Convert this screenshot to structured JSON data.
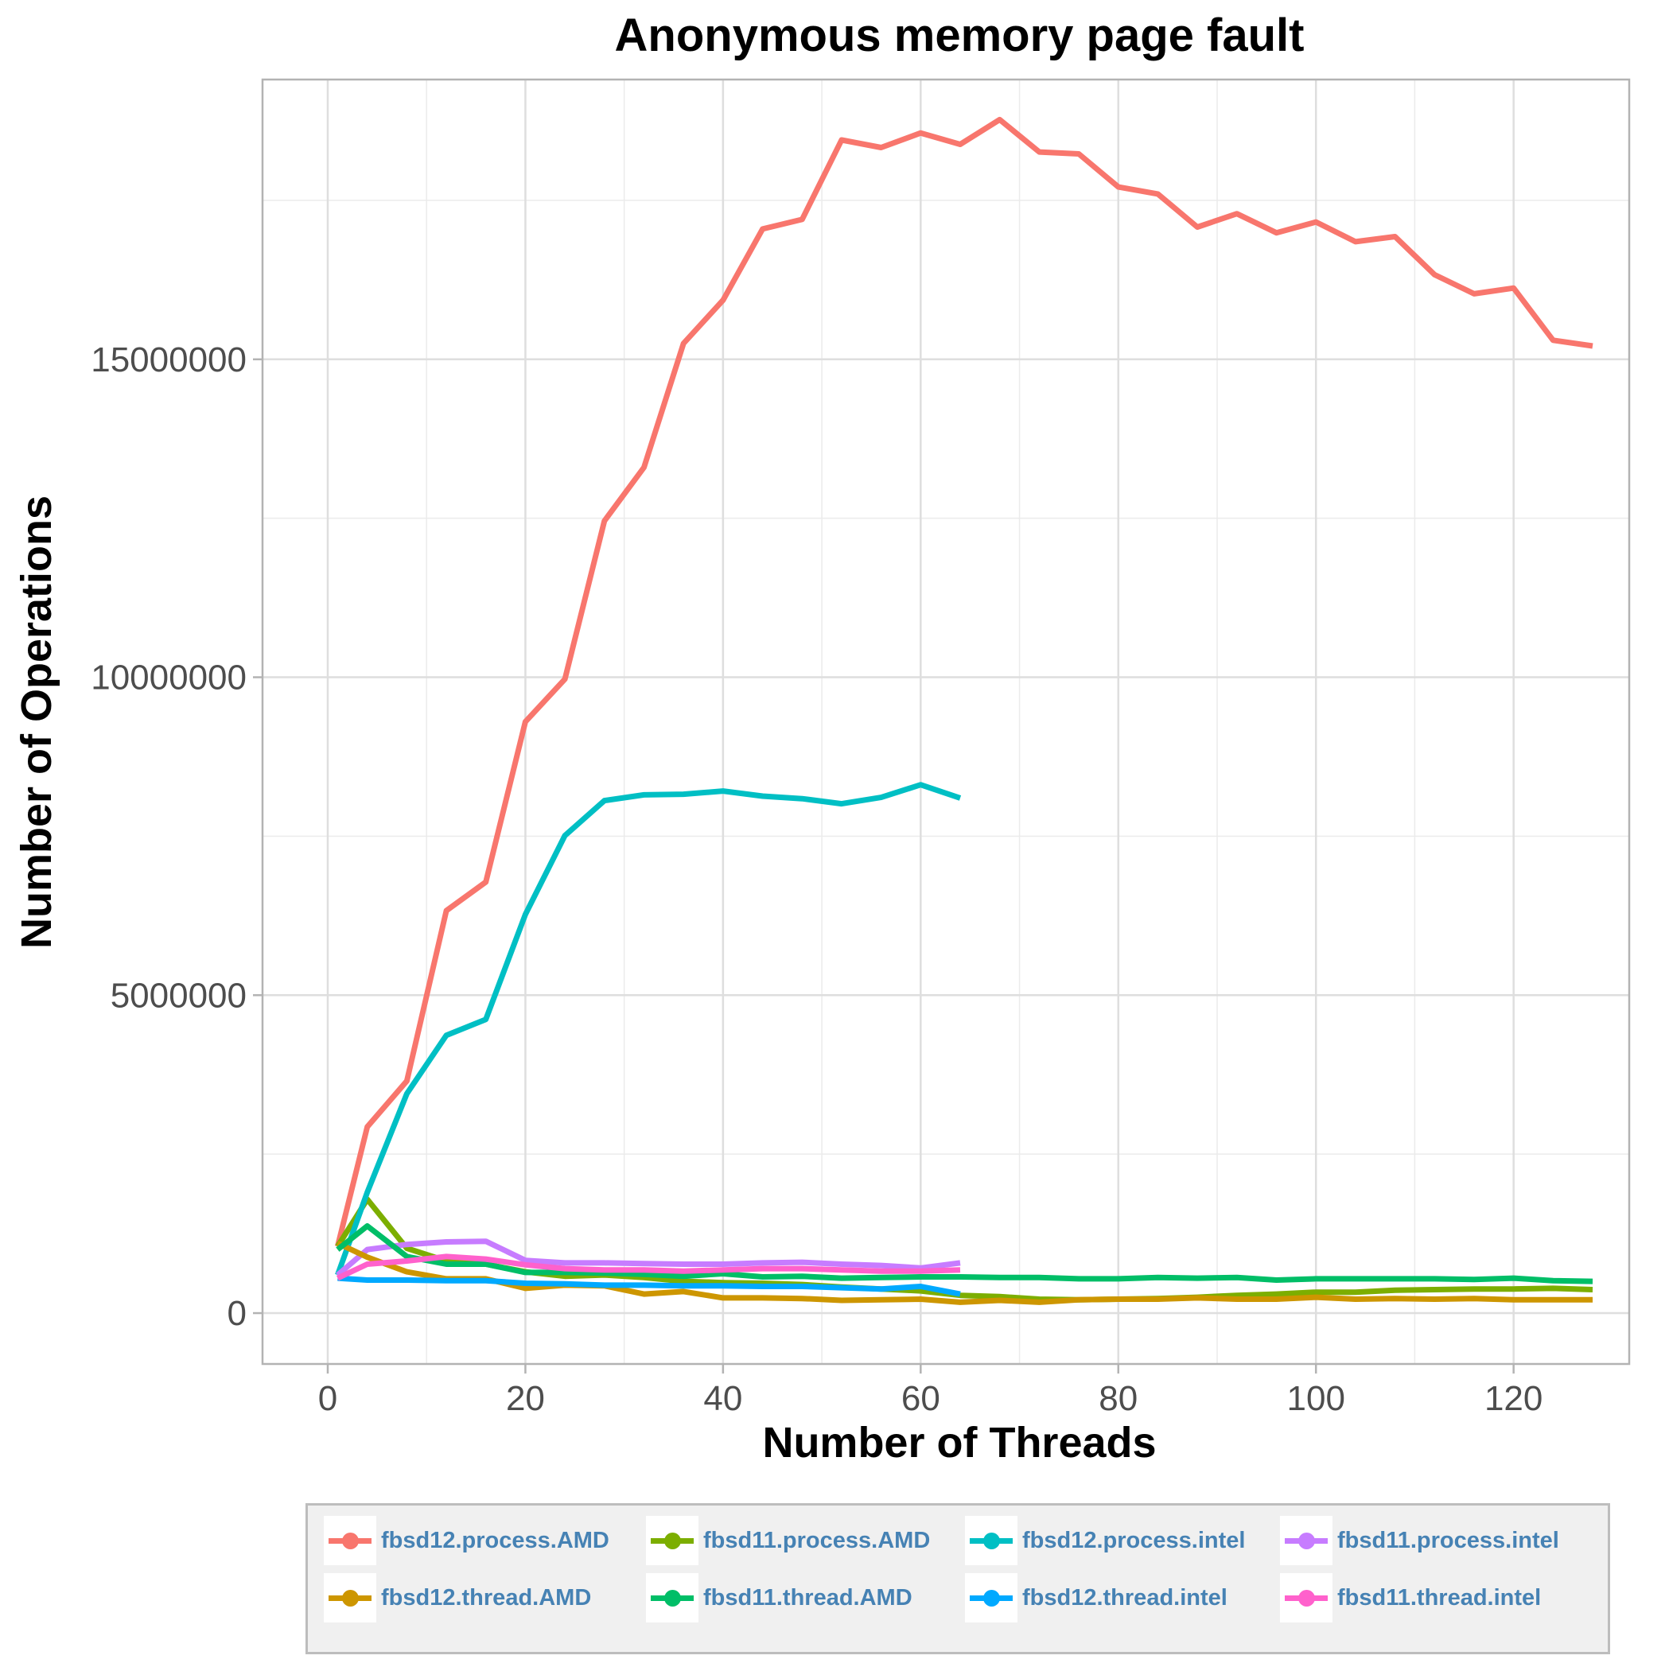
{
  "chart_data": {
    "type": "line",
    "title": "Anonymous memory page fault",
    "xlabel": "Number of Threads",
    "ylabel": "Number of Operations",
    "xlim": [
      -6.6,
      131.7
    ],
    "ylim": [
      -800000,
      19400000
    ],
    "xticks": [
      0,
      20,
      40,
      60,
      80,
      100,
      120
    ],
    "yticks": [
      0,
      5000000,
      10000000,
      15000000
    ],
    "ytick_labels": [
      "0",
      "5000000",
      "10000000",
      "15000000"
    ],
    "grid": true,
    "legend_position": "bottom",
    "series": [
      {
        "name": "fbsd12.process.AMD",
        "color": "#F8766D",
        "x": [
          1,
          4,
          8,
          12,
          16,
          20,
          24,
          28,
          32,
          36,
          40,
          44,
          48,
          52,
          56,
          60,
          64,
          68,
          72,
          76,
          80,
          84,
          88,
          92,
          96,
          100,
          104,
          108,
          112,
          116,
          120,
          124,
          128
        ],
        "y": [
          1050000,
          2930000,
          3650000,
          6330000,
          6780000,
          9300000,
          9970000,
          12460000,
          13300000,
          15250000,
          15930000,
          17050000,
          17200000,
          18450000,
          18330000,
          18560000,
          18380000,
          18770000,
          18260000,
          18230000,
          17710000,
          17600000,
          17080000,
          17290000,
          16990000,
          17160000,
          16850000,
          16930000,
          16330000,
          16030000,
          16120000,
          15300000,
          15210000
        ]
      },
      {
        "name": "fbsd11.process.AMD",
        "color": "#7CAE00",
        "x": [
          1,
          4,
          8,
          12,
          16,
          20,
          24,
          28,
          32,
          36,
          40,
          44,
          48,
          52,
          56,
          60,
          64,
          68,
          72,
          76,
          80,
          84,
          88,
          92,
          96,
          100,
          104,
          108,
          112,
          116,
          120,
          124,
          128
        ],
        "y": [
          1050000,
          1790000,
          1020000,
          820000,
          770000,
          650000,
          580000,
          600000,
          560000,
          500000,
          480000,
          470000,
          450000,
          410000,
          380000,
          350000,
          280000,
          260000,
          220000,
          210000,
          220000,
          230000,
          250000,
          280000,
          300000,
          330000,
          330000,
          360000,
          370000,
          380000,
          380000,
          390000,
          370000
        ]
      },
      {
        "name": "fbsd12.process.intel",
        "color": "#00BFC4",
        "x": [
          1,
          4,
          8,
          12,
          16,
          20,
          24,
          28,
          32,
          36,
          40,
          44,
          48,
          52,
          56,
          60,
          64
        ],
        "y": [
          600000,
          1900000,
          3450000,
          4370000,
          4620000,
          6270000,
          7510000,
          8060000,
          8150000,
          8160000,
          8210000,
          8130000,
          8090000,
          8010000,
          8110000,
          8310000,
          8100000
        ]
      },
      {
        "name": "fbsd11.process.intel",
        "color": "#C77CFF",
        "x": [
          1,
          4,
          8,
          12,
          16,
          20,
          24,
          28,
          32,
          36,
          40,
          44,
          48,
          52,
          56,
          60,
          64
        ],
        "y": [
          600000,
          1000000,
          1080000,
          1120000,
          1130000,
          830000,
          790000,
          790000,
          780000,
          770000,
          770000,
          790000,
          800000,
          770000,
          750000,
          710000,
          790000
        ]
      },
      {
        "name": "fbsd12.thread.AMD",
        "color": "#CD9600",
        "x": [
          1,
          4,
          8,
          12,
          16,
          20,
          24,
          28,
          32,
          36,
          40,
          44,
          48,
          52,
          56,
          60,
          64,
          68,
          72,
          76,
          80,
          84,
          88,
          92,
          96,
          100,
          104,
          108,
          112,
          116,
          120,
          124,
          128
        ],
        "y": [
          1100000,
          880000,
          650000,
          540000,
          540000,
          390000,
          440000,
          430000,
          300000,
          340000,
          240000,
          240000,
          230000,
          200000,
          210000,
          220000,
          170000,
          200000,
          170000,
          210000,
          220000,
          220000,
          240000,
          220000,
          220000,
          250000,
          220000,
          230000,
          220000,
          230000,
          210000,
          210000,
          210000
        ]
      },
      {
        "name": "fbsd11.thread.AMD",
        "color": "#00BE67",
        "x": [
          1,
          4,
          8,
          12,
          16,
          20,
          24,
          28,
          32,
          36,
          40,
          44,
          48,
          52,
          56,
          60,
          64,
          68,
          72,
          76,
          80,
          84,
          88,
          92,
          96,
          100,
          104,
          108,
          112,
          116,
          120,
          124,
          128
        ],
        "y": [
          1000000,
          1370000,
          890000,
          770000,
          770000,
          640000,
          640000,
          630000,
          610000,
          580000,
          620000,
          570000,
          580000,
          550000,
          560000,
          570000,
          570000,
          560000,
          560000,
          540000,
          540000,
          560000,
          550000,
          560000,
          520000,
          540000,
          540000,
          540000,
          540000,
          530000,
          550000,
          510000,
          500000
        ]
      },
      {
        "name": "fbsd12.thread.intel",
        "color": "#00A9FF",
        "x": [
          1,
          4,
          8,
          12,
          16,
          20,
          24,
          28,
          32,
          36,
          40,
          44,
          48,
          52,
          56,
          60,
          64
        ],
        "y": [
          550000,
          520000,
          520000,
          510000,
          510000,
          470000,
          460000,
          440000,
          440000,
          430000,
          430000,
          420000,
          420000,
          400000,
          380000,
          420000,
          300000
        ]
      },
      {
        "name": "fbsd11.thread.intel",
        "color": "#FF61CC",
        "x": [
          1,
          4,
          8,
          12,
          16,
          20,
          24,
          28,
          32,
          36,
          40,
          44,
          48,
          52,
          56,
          60,
          64
        ],
        "y": [
          550000,
          770000,
          820000,
          890000,
          850000,
          760000,
          700000,
          680000,
          680000,
          660000,
          680000,
          700000,
          700000,
          680000,
          660000,
          660000,
          680000
        ]
      }
    ]
  }
}
